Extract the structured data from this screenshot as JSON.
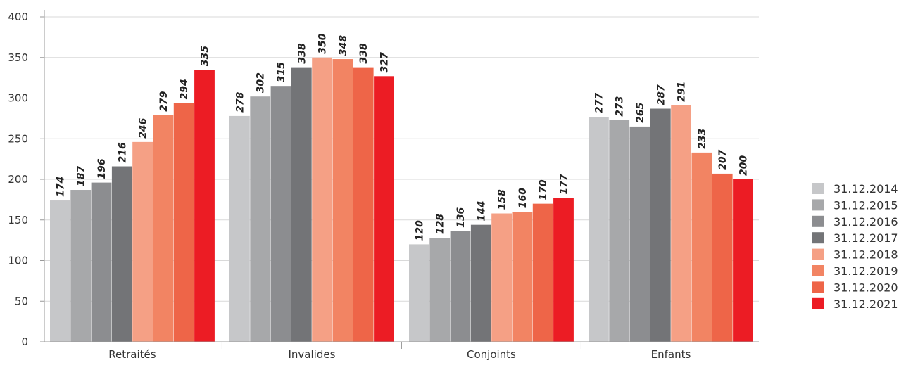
{
  "chart_data": {
    "type": "bar",
    "categories": [
      "Retraités",
      "Invalides",
      "Conjoints",
      "Enfants"
    ],
    "series": [
      {
        "name": "31.12.2014",
        "color": "#c6c7c9",
        "values": [
          174,
          278,
          120,
          277
        ]
      },
      {
        "name": "31.12.2015",
        "color": "#a7a8aa",
        "values": [
          187,
          302,
          128,
          273
        ]
      },
      {
        "name": "31.12.2016",
        "color": "#8c8d90",
        "values": [
          196,
          315,
          136,
          265
        ]
      },
      {
        "name": "31.12.2017",
        "color": "#737477",
        "values": [
          216,
          338,
          144,
          287
        ]
      },
      {
        "name": "31.12.2018",
        "color": "#f5a085",
        "values": [
          246,
          350,
          158,
          291
        ]
      },
      {
        "name": "31.12.2019",
        "color": "#f28463",
        "values": [
          279,
          348,
          160,
          233
        ]
      },
      {
        "name": "31.12.2020",
        "color": "#ee6548",
        "values": [
          294,
          338,
          170,
          207
        ]
      },
      {
        "name": "31.12.2021",
        "color": "#ec1c24",
        "values": [
          335,
          327,
          177,
          200
        ]
      }
    ],
    "ylim": [
      0,
      400
    ],
    "yticks": [
      0,
      50,
      100,
      150,
      200,
      250,
      300,
      350,
      400
    ],
    "grid": true,
    "legend": "right",
    "title": "",
    "xlabel": "",
    "ylabel": ""
  }
}
